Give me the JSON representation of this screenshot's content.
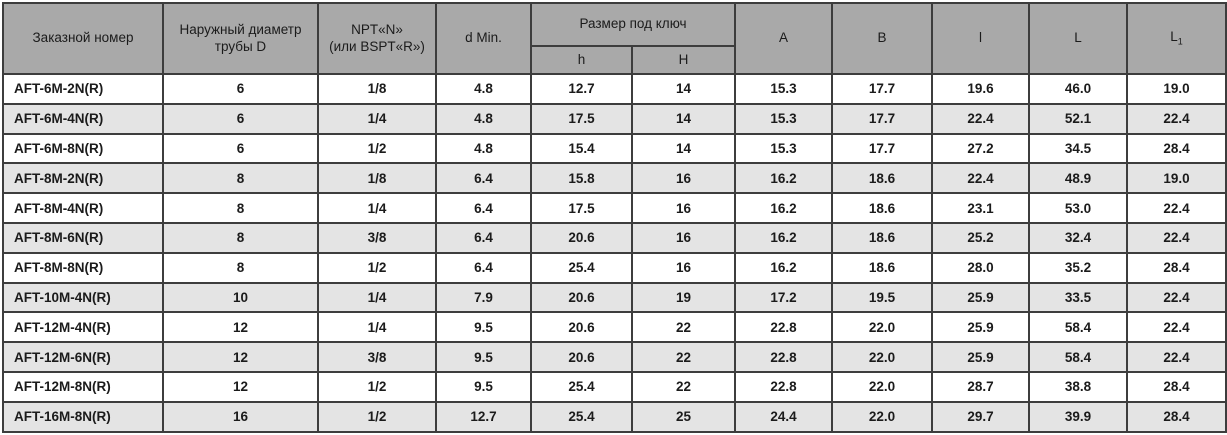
{
  "table": {
    "headers": {
      "order_number": "Заказной номер",
      "outer_diameter": "Наружный диаметр\nтрубы D",
      "thread": "NPT«N»\n(или BSPT«R»)",
      "d_min": "d Min.",
      "wrench_size": "Размер под ключ",
      "h_lower": "h",
      "h_upper": "H",
      "a": "A",
      "b": "B",
      "l_lower": "l",
      "l_upper": "L",
      "l1_base": "L",
      "l1_sub": "1"
    },
    "rows": [
      [
        "AFT-6M-2N(R)",
        "6",
        "1/8",
        "4.8",
        "12.7",
        "14",
        "15.3",
        "17.7",
        "19.6",
        "46.0",
        "19.0"
      ],
      [
        "AFT-6M-4N(R)",
        "6",
        "1/4",
        "4.8",
        "17.5",
        "14",
        "15.3",
        "17.7",
        "22.4",
        "52.1",
        "22.4"
      ],
      [
        "AFT-6M-8N(R)",
        "6",
        "1/2",
        "4.8",
        "15.4",
        "14",
        "15.3",
        "17.7",
        "27.2",
        "34.5",
        "28.4"
      ],
      [
        "AFT-8M-2N(R)",
        "8",
        "1/8",
        "6.4",
        "15.8",
        "16",
        "16.2",
        "18.6",
        "22.4",
        "48.9",
        "19.0"
      ],
      [
        "AFT-8M-4N(R)",
        "8",
        "1/4",
        "6.4",
        "17.5",
        "16",
        "16.2",
        "18.6",
        "23.1",
        "53.0",
        "22.4"
      ],
      [
        "AFT-8M-6N(R)",
        "8",
        "3/8",
        "6.4",
        "20.6",
        "16",
        "16.2",
        "18.6",
        "25.2",
        "32.4",
        "22.4"
      ],
      [
        "AFT-8M-8N(R)",
        "8",
        "1/2",
        "6.4",
        "25.4",
        "16",
        "16.2",
        "18.6",
        "28.0",
        "35.2",
        "28.4"
      ],
      [
        "AFT-10M-4N(R)",
        "10",
        "1/4",
        "7.9",
        "20.6",
        "19",
        "17.2",
        "19.5",
        "25.9",
        "33.5",
        "22.4"
      ],
      [
        "AFT-12M-4N(R)",
        "12",
        "1/4",
        "9.5",
        "20.6",
        "22",
        "22.8",
        "22.0",
        "25.9",
        "58.4",
        "22.4"
      ],
      [
        "AFT-12M-6N(R)",
        "12",
        "3/8",
        "9.5",
        "20.6",
        "22",
        "22.8",
        "22.0",
        "25.9",
        "58.4",
        "22.4"
      ],
      [
        "AFT-12M-8N(R)",
        "12",
        "1/2",
        "9.5",
        "25.4",
        "22",
        "22.8",
        "22.0",
        "28.7",
        "38.8",
        "28.4"
      ],
      [
        "AFT-16M-8N(R)",
        "16",
        "1/2",
        "12.7",
        "25.4",
        "25",
        "24.4",
        "22.0",
        "29.7",
        "39.9",
        "28.4"
      ]
    ],
    "colors": {
      "header_bg": "#a9a9a9",
      "row_alt_bg": "#e4e4e4",
      "row_bg": "#ffffff",
      "grid_border": "#3d3d3d",
      "outer_border": "#101010",
      "text": "#1b1b1b"
    }
  }
}
